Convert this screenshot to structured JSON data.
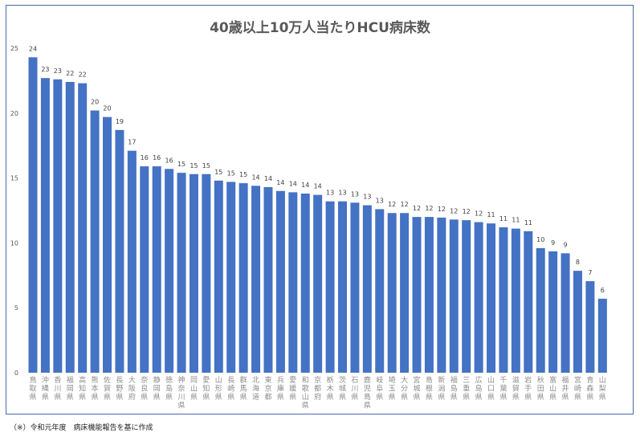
{
  "chart_data": {
    "type": "bar",
    "title": "40歳以上10万人当たりHCU病床数",
    "xlabel": "",
    "ylabel": "",
    "ylim": [
      0,
      25
    ],
    "yticks": [
      0,
      5,
      10,
      15,
      20,
      25
    ],
    "grid": false,
    "legend": "none",
    "bar_color": "#4472c4",
    "categories": [
      "鳥取県",
      "沖縄県",
      "香川県",
      "福岡県",
      "高知県",
      "熊本県",
      "佐賀県",
      "長野県",
      "大阪府",
      "奈良県",
      "静岡県",
      "徳島県",
      "神奈川県",
      "岡山県",
      "愛知県",
      "山形県",
      "長崎県",
      "群馬県",
      "北海道",
      "東京都",
      "兵庫県",
      "愛媛県",
      "和歌山県",
      "京都府",
      "栃木県",
      "茨城県",
      "石川県",
      "鹿児島県",
      "岐阜県",
      "埼玉県",
      "大分県",
      "宮城県",
      "島根県",
      "新潟県",
      "福島県",
      "三重県",
      "広島県",
      "山口県",
      "千葉県",
      "滋賀県",
      "岩手県",
      "秋田県",
      "富山県",
      "福井県",
      "宮崎県",
      "青森県",
      "山梨県"
    ],
    "values": [
      24.3,
      22.7,
      22.6,
      22.4,
      22.3,
      20.2,
      19.7,
      18.7,
      17.1,
      15.9,
      15.9,
      15.7,
      15.4,
      15.3,
      15.3,
      14.8,
      14.7,
      14.6,
      14.4,
      14.3,
      14.0,
      13.9,
      13.8,
      13.7,
      13.2,
      13.2,
      13.1,
      12.9,
      12.6,
      12.3,
      12.3,
      12.0,
      12.0,
      11.95,
      11.8,
      11.75,
      11.6,
      11.5,
      11.2,
      11.1,
      10.9,
      9.6,
      9.35,
      9.2,
      7.85,
      7.05,
      5.7
    ],
    "data_labels": [
      "24",
      "23",
      "23",
      "22",
      "22",
      "20",
      "20",
      "19",
      "17",
      "16",
      "16",
      "16",
      "15",
      "15",
      "15",
      "15",
      "15",
      "15",
      "14",
      "14",
      "14",
      "14",
      "14",
      "14",
      "13",
      "13",
      "13",
      "13",
      "13",
      "12",
      "12",
      "12",
      "12",
      "12",
      "12",
      "12",
      "12",
      "11",
      "11",
      "11",
      "11",
      "10",
      "9",
      "9",
      "8",
      "7",
      "6"
    ]
  },
  "footnote": "（※）令和元年度　病床機能報告を基に作成"
}
